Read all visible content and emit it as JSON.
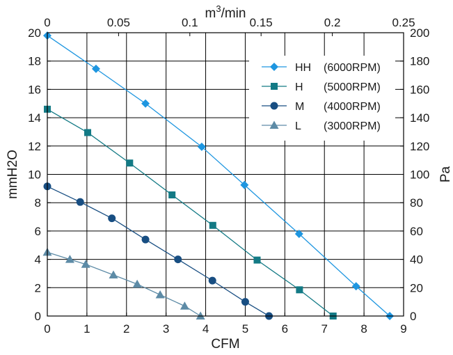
{
  "chart_data": {
    "type": "line",
    "xlabel": "CFM",
    "x_ticks": [
      "0",
      "1",
      "2",
      "3",
      "4",
      "5",
      "6",
      "7",
      "8",
      "9"
    ],
    "xlim": [
      0,
      9
    ],
    "ylabel_left": "mmH2O",
    "y_left_ticks": [
      "0",
      "2",
      "4",
      "6",
      "8",
      "10",
      "12",
      "14",
      "16",
      "18",
      "20"
    ],
    "ylim_left": [
      0,
      20
    ],
    "xlabel_top": "m³/min",
    "x_top_ticks": [
      "0",
      "0.05",
      "0.1",
      "0.15",
      "0.2",
      "0.25"
    ],
    "xlim_top": [
      0,
      0.25
    ],
    "ylabel_right": "Pa",
    "y_right_ticks": [
      "0",
      "20",
      "40",
      "60",
      "80",
      "100",
      "120",
      "140",
      "160",
      "180",
      "200"
    ],
    "ylim_right": [
      0,
      200
    ],
    "grid": true,
    "legend_position": "top-right",
    "series": [
      {
        "name": "HH",
        "note": "(6000RPM)",
        "color": "#1e96e0",
        "marker": "diamond",
        "x": [
          0,
          1.23,
          2.48,
          3.9,
          4.98,
          6.36,
          7.8,
          8.65
        ],
        "y": [
          19.8,
          17.45,
          15.0,
          11.95,
          9.25,
          5.8,
          2.1,
          0
        ]
      },
      {
        "name": "H",
        "note": "(5000RPM)",
        "color": "#137a85",
        "marker": "square",
        "x": [
          0,
          1.02,
          2.08,
          3.15,
          4.18,
          5.3,
          6.37,
          7.22
        ],
        "y": [
          14.6,
          12.95,
          10.8,
          8.55,
          6.4,
          3.95,
          1.85,
          0
        ]
      },
      {
        "name": "M",
        "note": "(4000RPM)",
        "color": "#184e82",
        "marker": "circle",
        "x": [
          0,
          0.83,
          1.63,
          2.48,
          3.3,
          4.17,
          5.0,
          5.6
        ],
        "y": [
          9.15,
          8.05,
          6.9,
          5.4,
          4.0,
          2.5,
          1.0,
          0
        ]
      },
      {
        "name": "L",
        "note": "(3000RPM)",
        "color": "#5d8ba6",
        "marker": "triangle",
        "x": [
          0,
          0.57,
          0.97,
          1.67,
          2.27,
          2.85,
          3.47,
          3.87
        ],
        "y": [
          4.5,
          4.0,
          3.65,
          2.9,
          2.25,
          1.5,
          0.7,
          0
        ]
      }
    ]
  }
}
